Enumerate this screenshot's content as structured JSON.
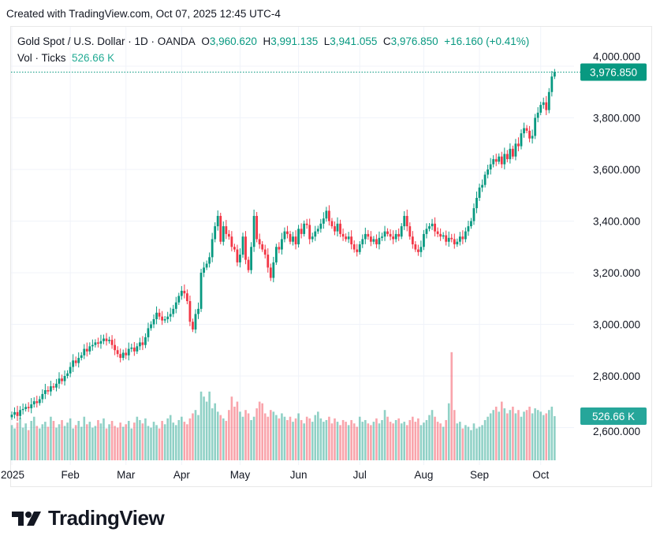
{
  "header": {
    "created": "Created with TradingView.com, Oct 07, 2025 12:45 UTC-4"
  },
  "legend": {
    "symbol": "Gold Spot / U.S. Dollar · 1D · OANDA",
    "o_label": "O",
    "o": "3,960.620",
    "h_label": "H",
    "h": "3,991.135",
    "l_label": "L",
    "l": "3,941.055",
    "c_label": "C",
    "c": "3,976.850",
    "change": "+16.160 (+0.41%)",
    "vol_label": "Vol · Ticks",
    "vol": "526.66 K"
  },
  "logo": {
    "text": "TradingView"
  },
  "colors": {
    "up": "#089981",
    "down": "#f23645",
    "grid": "#f0f3fa"
  },
  "chart_data": {
    "type": "candlestick",
    "title": "Gold Spot / U.S. Dollar · 1D · OANDA",
    "price_axis": {
      "ticks": [
        "4,000.000",
        "3,800.000",
        "3,600.000",
        "3,400.000",
        "3,200.000",
        "3,000.000",
        "2,800.000",
        "2,600.000"
      ],
      "tick_values": [
        4000,
        3800,
        3600,
        3400,
        3200,
        3000,
        2800,
        2600
      ],
      "ylim": [
        2560,
        4030
      ]
    },
    "time_axis": {
      "ticks": [
        "2025",
        "Feb",
        "Mar",
        "Apr",
        "May",
        "Jun",
        "Jul",
        "Aug",
        "Sep",
        "Oct"
      ],
      "tick_index": [
        0,
        21,
        41,
        61,
        82,
        103,
        125,
        148,
        168,
        190
      ]
    },
    "last_price_label": "3,976.850",
    "last_volume_label": "526.66 K",
    "closes": [
      2650,
      2660,
      2645,
      2668,
      2672,
      2680,
      2675,
      2690,
      2702,
      2695,
      2710,
      2730,
      2745,
      2740,
      2760,
      2755,
      2770,
      2790,
      2780,
      2800,
      2810,
      2835,
      2860,
      2850,
      2870,
      2880,
      2905,
      2895,
      2915,
      2920,
      2930,
      2925,
      2935,
      2945,
      2935,
      2940,
      2920,
      2900,
      2885,
      2870,
      2890,
      2880,
      2905,
      2910,
      2895,
      2915,
      2930,
      2920,
      2950,
      2985,
      3000,
      3020,
      3045,
      3030,
      3015,
      3020,
      3030,
      3040,
      3060,
      3085,
      3110,
      3130,
      3120,
      3090,
      3010,
      2980,
      3040,
      3060,
      3200,
      3220,
      3235,
      3260,
      3330,
      3380,
      3420,
      3320,
      3380,
      3350,
      3340,
      3300,
      3290,
      3240,
      3270,
      3340,
      3250,
      3210,
      3300,
      3420,
      3330,
      3310,
      3290,
      3270,
      3220,
      3180,
      3240,
      3300,
      3290,
      3330,
      3360,
      3350,
      3320,
      3340,
      3310,
      3370,
      3350,
      3390,
      3385,
      3330,
      3340,
      3360,
      3370,
      3390,
      3410,
      3440,
      3400,
      3380,
      3360,
      3390,
      3350,
      3340,
      3330,
      3340,
      3310,
      3290,
      3280,
      3310,
      3330,
      3350,
      3340,
      3320,
      3330,
      3310,
      3335,
      3340,
      3360,
      3350,
      3340,
      3330,
      3350,
      3340,
      3380,
      3420,
      3380,
      3340,
      3310,
      3290,
      3280,
      3300,
      3350,
      3370,
      3380,
      3390,
      3360,
      3350,
      3340,
      3345,
      3320,
      3335,
      3330,
      3310,
      3320,
      3340,
      3330,
      3360,
      3380,
      3400,
      3450,
      3490,
      3530,
      3540,
      3580,
      3600,
      3620,
      3640,
      3630,
      3650,
      3620,
      3660,
      3640,
      3680,
      3650,
      3700,
      3690,
      3740,
      3760,
      3750,
      3720,
      3730,
      3800,
      3820,
      3850,
      3860,
      3830,
      3900,
      3960,
      3977
    ],
    "volumes_k": [
      420,
      380,
      450,
      510,
      390,
      440,
      360,
      470,
      520,
      410,
      380,
      430,
      460,
      400,
      520,
      470,
      390,
      430,
      480,
      410,
      450,
      500,
      380,
      420,
      470,
      400,
      520,
      430,
      460,
      390,
      410,
      480,
      440,
      500,
      380,
      430,
      470,
      410,
      390,
      450,
      400,
      430,
      470,
      380,
      450,
      520,
      480,
      440,
      500,
      410,
      390,
      460,
      420,
      380,
      470,
      430,
      500,
      540,
      450,
      420,
      480,
      520,
      460,
      430,
      500,
      560,
      600,
      540,
      820,
      760,
      700,
      820,
      620,
      680,
      580,
      540,
      500,
      470,
      600,
      760,
      640,
      700,
      580,
      520,
      600,
      560,
      480,
      520,
      620,
      700,
      680,
      560,
      520,
      600,
      580,
      540,
      500,
      560,
      520,
      480,
      520,
      460,
      500,
      560,
      480,
      440,
      520,
      500,
      460,
      540,
      580,
      500,
      460,
      480,
      520,
      440,
      500,
      460,
      420,
      480,
      460,
      420,
      480,
      440,
      400,
      520,
      460,
      480,
      440,
      420,
      460,
      500,
      440,
      480,
      600,
      520,
      460,
      440,
      480,
      500,
      440,
      460,
      420,
      480,
      520,
      460,
      500,
      420,
      450,
      480,
      540,
      600,
      520,
      460,
      440,
      400,
      480,
      680,
      1290,
      600,
      440,
      460,
      380,
      420,
      400,
      360,
      440,
      380,
      400,
      420,
      480,
      520,
      560,
      600,
      640,
      580,
      700,
      620,
      560,
      600,
      640,
      560,
      600,
      520,
      580,
      600,
      640,
      560,
      620,
      600,
      580,
      540,
      560,
      600,
      640,
      527
    ],
    "first_open": 2640
  }
}
